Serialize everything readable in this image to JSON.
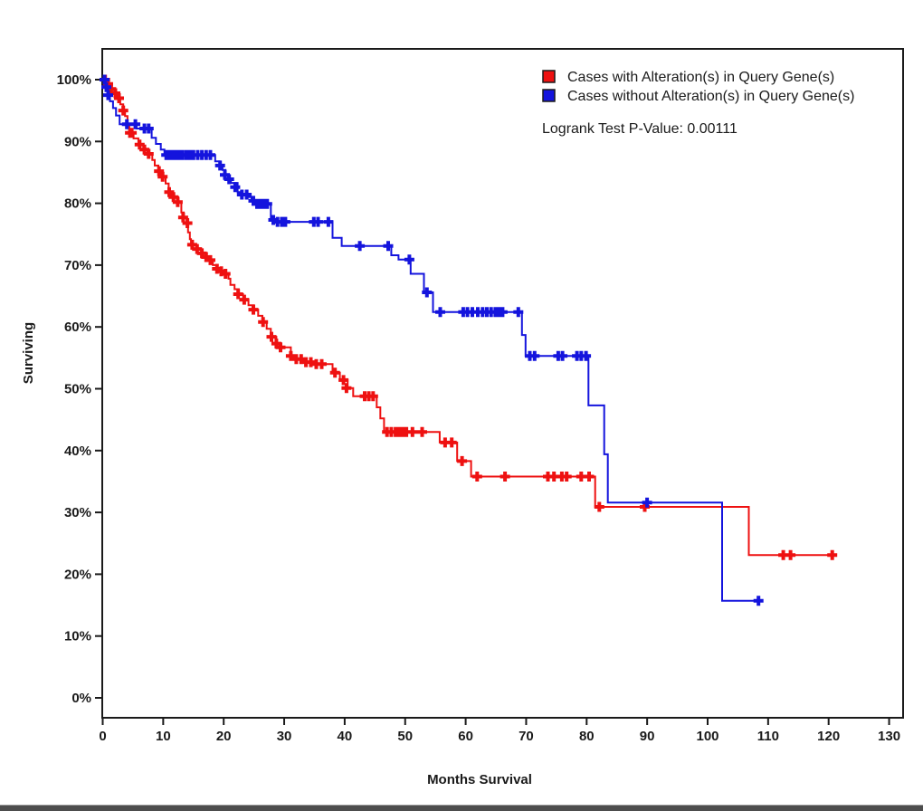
{
  "chart_data": {
    "type": "line",
    "subtype": "kaplan-meier-step",
    "title": "",
    "xlabel": "Months Survival",
    "ylabel": "Surviving",
    "xlim": [
      0,
      130
    ],
    "ylim_percent": [
      0,
      100
    ],
    "grid": false,
    "legend_position": "top-right-inside",
    "x_ticks": [
      0,
      10,
      20,
      30,
      40,
      50,
      60,
      70,
      80,
      90,
      100,
      110,
      120,
      130
    ],
    "x_tick_labels": [
      "0",
      "10",
      "20",
      "30",
      "40",
      "50",
      "60",
      "70",
      "80",
      "90",
      "100",
      "110",
      "120",
      "130"
    ],
    "y_ticks_percent": [
      100,
      90,
      80,
      70,
      60,
      50,
      40,
      30,
      20,
      10,
      0
    ],
    "y_tick_labels": [
      "100%",
      "90%",
      "80%",
      "70%",
      "60%",
      "50%",
      "40%",
      "30%",
      "20%",
      "10%",
      "0%"
    ],
    "pvalue_label": "Logrank Test P-Value: 0.00111",
    "axis_color": "#1a1a1a",
    "series": [
      {
        "name": "Cases with Alteration(s) in Query Gene(s)",
        "color": "#ee1111",
        "end_month": 120.6,
        "steps": [
          [
            0,
            100
          ],
          [
            0.7,
            99.3
          ],
          [
            1.2,
            98.5
          ],
          [
            1.9,
            97.8
          ],
          [
            2.5,
            97
          ],
          [
            2.9,
            96
          ],
          [
            3.4,
            95
          ],
          [
            3.7,
            94.1
          ],
          [
            4.1,
            92.7
          ],
          [
            4.4,
            91.4
          ],
          [
            5.1,
            90.5
          ],
          [
            5.9,
            89.5
          ],
          [
            6.7,
            88.7
          ],
          [
            7.4,
            88
          ],
          [
            8.2,
            87
          ],
          [
            8.6,
            86.1
          ],
          [
            9.2,
            85.2
          ],
          [
            9.7,
            84.3
          ],
          [
            10.4,
            83.2
          ],
          [
            10.9,
            81.8
          ],
          [
            11.4,
            81
          ],
          [
            12.5,
            80.2
          ],
          [
            13,
            78.5
          ],
          [
            13.4,
            77.7
          ],
          [
            13.9,
            76.8
          ],
          [
            14.1,
            75.3
          ],
          [
            14.4,
            74.2
          ],
          [
            14.6,
            73.3
          ],
          [
            15.5,
            72.6
          ],
          [
            16.3,
            71.9
          ],
          [
            17.1,
            71.3
          ],
          [
            17.8,
            70.8
          ],
          [
            18.2,
            70
          ],
          [
            19,
            69.4
          ],
          [
            19.7,
            69
          ],
          [
            20.3,
            68.6
          ],
          [
            20.8,
            67.8
          ],
          [
            21.1,
            66.8
          ],
          [
            21.8,
            66.1
          ],
          [
            22.5,
            65.3
          ],
          [
            23.2,
            64.4
          ],
          [
            24.1,
            63.5
          ],
          [
            25,
            62.8
          ],
          [
            25.7,
            61.8
          ],
          [
            26.4,
            60.8
          ],
          [
            27.1,
            59.7
          ],
          [
            27.8,
            58.4
          ],
          [
            28.7,
            57.3
          ],
          [
            29.5,
            56.7
          ],
          [
            31.1,
            55.3
          ],
          [
            31.5,
            54.8
          ],
          [
            33.2,
            54.3
          ],
          [
            35,
            54
          ],
          [
            38,
            52.6
          ],
          [
            39.2,
            51.4
          ],
          [
            40.5,
            50.1
          ],
          [
            41.4,
            48.8
          ],
          [
            45.3,
            47
          ],
          [
            45.9,
            45.2
          ],
          [
            46.5,
            43
          ],
          [
            55.7,
            41.3
          ],
          [
            58.6,
            38.3
          ],
          [
            60.9,
            35.8
          ],
          [
            81.4,
            30.9
          ],
          [
            106.8,
            23.1
          ]
        ],
        "censors": [
          [
            0.4,
            100
          ],
          [
            0.9,
            99.3
          ],
          [
            1.4,
            98.5
          ],
          [
            2.1,
            97.8
          ],
          [
            2.7,
            97
          ],
          [
            3.4,
            95
          ],
          [
            4.5,
            91.4
          ],
          [
            4.8,
            91.4
          ],
          [
            6.1,
            89.5
          ],
          [
            6.9,
            88.7
          ],
          [
            7.6,
            88
          ],
          [
            9.3,
            85.2
          ],
          [
            9.9,
            84.3
          ],
          [
            11,
            81.8
          ],
          [
            11.7,
            81
          ],
          [
            12.4,
            80.2
          ],
          [
            13.3,
            77.7
          ],
          [
            14,
            76.8
          ],
          [
            14.8,
            73.3
          ],
          [
            15.6,
            72.6
          ],
          [
            16.4,
            71.9
          ],
          [
            17.1,
            71.3
          ],
          [
            17.8,
            70.8
          ],
          [
            18.9,
            69.4
          ],
          [
            19.6,
            69
          ],
          [
            20.3,
            68.6
          ],
          [
            22.4,
            65.3
          ],
          [
            23.4,
            64.4
          ],
          [
            24.9,
            62.8
          ],
          [
            26.5,
            60.8
          ],
          [
            27.9,
            58.4
          ],
          [
            28.7,
            57.3
          ],
          [
            29.4,
            56.7
          ],
          [
            31.1,
            55.3
          ],
          [
            32,
            54.8
          ],
          [
            32.8,
            54.8
          ],
          [
            33.6,
            54.3
          ],
          [
            34.4,
            54.3
          ],
          [
            35.3,
            54
          ],
          [
            36.2,
            54
          ],
          [
            38.4,
            52.6
          ],
          [
            39.8,
            51.4
          ],
          [
            40.3,
            50.1
          ],
          [
            43.3,
            48.8
          ],
          [
            44,
            48.8
          ],
          [
            44.7,
            48.8
          ],
          [
            47,
            43
          ],
          [
            47.7,
            43
          ],
          [
            48.4,
            43
          ],
          [
            49,
            43
          ],
          [
            49.6,
            43
          ],
          [
            50.2,
            43
          ],
          [
            51.2,
            43
          ],
          [
            52.8,
            43
          ],
          [
            56.6,
            41.3
          ],
          [
            57.7,
            41.3
          ],
          [
            59.4,
            38.3
          ],
          [
            61.9,
            35.8
          ],
          [
            66.5,
            35.8
          ],
          [
            73.6,
            35.8
          ],
          [
            74.6,
            35.8
          ],
          [
            75.9,
            35.8
          ],
          [
            76.7,
            35.8
          ],
          [
            79.1,
            35.8
          ],
          [
            80.4,
            35.8
          ],
          [
            82.1,
            30.9
          ],
          [
            89.6,
            30.9
          ],
          [
            112.5,
            23.1
          ],
          [
            113.7,
            23.1
          ],
          [
            120.6,
            23.1
          ]
        ]
      },
      {
        "name": "Cases without Alteration(s) in Query Gene(s)",
        "color": "#1414dd",
        "end_month": 108.6,
        "steps": [
          [
            0,
            100
          ],
          [
            0.5,
            98.8
          ],
          [
            0.9,
            97.5
          ],
          [
            1.2,
            96.5
          ],
          [
            1.7,
            95.4
          ],
          [
            2.2,
            94.2
          ],
          [
            2.8,
            92.8
          ],
          [
            5.6,
            92.1
          ],
          [
            8.1,
            90.6
          ],
          [
            8.8,
            89.6
          ],
          [
            9.6,
            88.7
          ],
          [
            10.2,
            87.8
          ],
          [
            18.6,
            86.8
          ],
          [
            19.3,
            86.1
          ],
          [
            19.8,
            85.4
          ],
          [
            20.3,
            84.6
          ],
          [
            20.7,
            83.9
          ],
          [
            21.2,
            83.3
          ],
          [
            22.3,
            81.8
          ],
          [
            22.8,
            81.4
          ],
          [
            24.2,
            81
          ],
          [
            24.6,
            80.4
          ],
          [
            25.1,
            79.9
          ],
          [
            27.8,
            77.3
          ],
          [
            28.6,
            77
          ],
          [
            38,
            74.4
          ],
          [
            39.5,
            73.1
          ],
          [
            47.7,
            71.6
          ],
          [
            48.9,
            70.9
          ],
          [
            50.9,
            68.6
          ],
          [
            53.1,
            65.6
          ],
          [
            54.6,
            62.4
          ],
          [
            69.3,
            58.7
          ],
          [
            69.9,
            55.3
          ],
          [
            80.3,
            47.3
          ],
          [
            82.9,
            39.4
          ],
          [
            83.5,
            31.6
          ],
          [
            102.4,
            15.7
          ]
        ],
        "censors": [
          [
            0.3,
            100
          ],
          [
            0.6,
            98.8
          ],
          [
            0.9,
            97.5
          ],
          [
            4,
            92.8
          ],
          [
            5.4,
            92.8
          ],
          [
            6.9,
            92.1
          ],
          [
            7.6,
            92.1
          ],
          [
            10.5,
            87.8
          ],
          [
            11,
            87.8
          ],
          [
            11.5,
            87.8
          ],
          [
            12,
            87.8
          ],
          [
            12.6,
            87.8
          ],
          [
            13.2,
            87.8
          ],
          [
            13.8,
            87.8
          ],
          [
            14.4,
            87.8
          ],
          [
            15,
            87.8
          ],
          [
            15.7,
            87.8
          ],
          [
            16.4,
            87.8
          ],
          [
            17.1,
            87.8
          ],
          [
            17.8,
            87.8
          ],
          [
            19.4,
            86.1
          ],
          [
            20.2,
            84.6
          ],
          [
            20.9,
            83.9
          ],
          [
            21.9,
            82.6
          ],
          [
            23,
            81.4
          ],
          [
            23.8,
            81.4
          ],
          [
            24.9,
            80.4
          ],
          [
            25.5,
            79.9
          ],
          [
            26.1,
            79.9
          ],
          [
            26.7,
            79.9
          ],
          [
            27.2,
            79.9
          ],
          [
            28.2,
            77.3
          ],
          [
            28.9,
            77
          ],
          [
            29.6,
            77
          ],
          [
            30.2,
            77
          ],
          [
            34.9,
            77
          ],
          [
            35.6,
            77
          ],
          [
            37.3,
            77
          ],
          [
            42.5,
            73.1
          ],
          [
            47.2,
            73.1
          ],
          [
            50.7,
            70.9
          ],
          [
            53.6,
            65.6
          ],
          [
            55.8,
            62.4
          ],
          [
            59.6,
            62.4
          ],
          [
            60.3,
            62.4
          ],
          [
            61.1,
            62.4
          ],
          [
            62,
            62.4
          ],
          [
            62.8,
            62.4
          ],
          [
            63.5,
            62.4
          ],
          [
            64.2,
            62.4
          ],
          [
            64.9,
            62.4
          ],
          [
            65.5,
            62.4
          ],
          [
            66.1,
            62.4
          ],
          [
            68.7,
            62.4
          ],
          [
            70.6,
            55.3
          ],
          [
            71.4,
            55.3
          ],
          [
            75.3,
            55.3
          ],
          [
            76,
            55.3
          ],
          [
            78.4,
            55.3
          ],
          [
            79.1,
            55.3
          ],
          [
            79.9,
            55.3
          ],
          [
            90,
            31.6
          ],
          [
            108.4,
            15.7
          ]
        ]
      }
    ]
  }
}
